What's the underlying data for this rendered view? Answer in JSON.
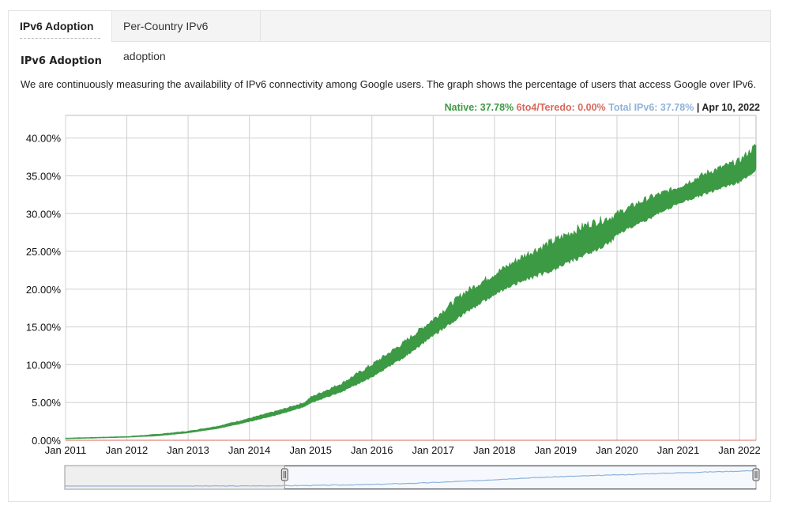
{
  "tabs": [
    {
      "label": "IPv6 Adoption",
      "active": true
    },
    {
      "label": "Per-Country IPv6 adoption",
      "active": false
    }
  ],
  "heading": "IPv6 Adoption",
  "description": "We are continuously measuring the availability of IPv6 connectivity among Google users. The graph shows the percentage of users that access Google over IPv6.",
  "legend": {
    "native": "Native: 37.78%",
    "teredo": "6to4/Teredo: 0.00%",
    "total": "Total IPv6: 37.78%",
    "separator": "|",
    "date": "Apr 10, 2022"
  },
  "colors": {
    "native": "#3d9a44",
    "teredo": "#d9685c",
    "total": "#8fb2da",
    "grid": "#d0d0d0"
  },
  "chart_data": {
    "type": "area",
    "title": "",
    "xlabel": "",
    "ylabel": "",
    "ylim": [
      0,
      43
    ],
    "grid": true,
    "yticks": [
      "0.00%",
      "5.00%",
      "10.00%",
      "15.00%",
      "20.00%",
      "25.00%",
      "30.00%",
      "35.00%",
      "40.00%"
    ],
    "ytick_values": [
      0,
      5,
      10,
      15,
      20,
      25,
      30,
      35,
      40
    ],
    "xticks": [
      "Jan 2011",
      "Jan 2012",
      "Jan 2013",
      "Jan 2014",
      "Jan 2015",
      "Jan 2016",
      "Jan 2017",
      "Jan 2018",
      "Jan 2019",
      "Jan 2020",
      "Jan 2021",
      "Jan 2022"
    ],
    "xtick_years": [
      2011,
      2012,
      2013,
      2014,
      2015,
      2016,
      2017,
      2018,
      2019,
      2020,
      2021,
      2022
    ],
    "xlim": [
      2011.0,
      2022.27
    ],
    "series": [
      {
        "name": "Native",
        "x": [
          2011.0,
          2011.5,
          2012.0,
          2012.5,
          2013.0,
          2013.5,
          2014.0,
          2014.5,
          2014.9,
          2015.0,
          2015.5,
          2016.0,
          2016.5,
          2017.0,
          2017.5,
          2017.9,
          2018.0,
          2018.5,
          2019.0,
          2019.5,
          2019.9,
          2020.0,
          2020.5,
          2021.0,
          2021.5,
          2022.0,
          2022.27
        ],
        "low": [
          0.2,
          0.3,
          0.4,
          0.6,
          1.0,
          1.6,
          2.5,
          3.5,
          4.5,
          5.0,
          6.5,
          8.5,
          11.0,
          14.0,
          17.0,
          19.0,
          19.5,
          21.5,
          23.0,
          25.0,
          26.5,
          27.5,
          29.5,
          31.5,
          33.0,
          34.5,
          36.0
        ],
        "high": [
          0.3,
          0.4,
          0.5,
          0.8,
          1.2,
          1.9,
          2.9,
          4.0,
          5.0,
          5.7,
          7.5,
          10.0,
          12.8,
          16.0,
          19.5,
          21.5,
          22.0,
          24.5,
          26.5,
          28.5,
          29.5,
          30.0,
          32.0,
          33.5,
          35.5,
          37.0,
          39.0
        ]
      },
      {
        "name": "6to4/Teredo",
        "x": [
          2011.0,
          2022.27
        ],
        "low": [
          0.0,
          0.0
        ],
        "high": [
          0.0,
          0.0
        ]
      }
    ],
    "navigator": {
      "selection_start": 2012.88,
      "selection_end": 2022.27,
      "full_start": 2008.5,
      "full_end": 2022.27
    }
  }
}
